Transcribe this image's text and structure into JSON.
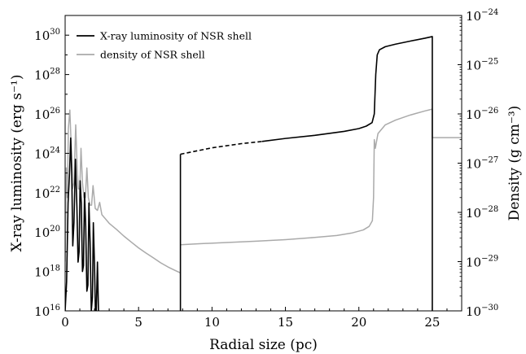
{
  "chart_data": {
    "type": "line",
    "title": "",
    "xlabel": "Radial size (pc)",
    "ylabel_left": "X-ray luminosity (erg s⁻¹)",
    "ylabel_right": "Density (g cm⁻³)",
    "xlim": [
      0,
      27
    ],
    "ylim_left": [
      1e+16,
      1e+31
    ],
    "ylim_right": [
      1e-30,
      1e-24
    ],
    "yscale_left": "log",
    "yscale_right": "log",
    "grid": false,
    "legend": "top-left",
    "x_ticks": [
      0,
      5,
      10,
      15,
      20,
      25
    ],
    "x_tick_labels": [
      "0",
      "5",
      "10",
      "15",
      "20",
      "25"
    ],
    "left_ticks": [
      {
        "base": "10",
        "exp": "16",
        "value": 1e+16
      },
      {
        "base": "10",
        "exp": "18",
        "value": 1e+18
      },
      {
        "base": "10",
        "exp": "20",
        "value": 1e+20
      },
      {
        "base": "10",
        "exp": "22",
        "value": 1e+22
      },
      {
        "base": "10",
        "exp": "24",
        "value": 1e+24
      },
      {
        "base": "10",
        "exp": "26",
        "value": 1e+26
      },
      {
        "base": "10",
        "exp": "28",
        "value": 1e+28
      },
      {
        "base": "10",
        "exp": "30",
        "value": 1e+30
      }
    ],
    "right_ticks": [
      {
        "base": "10",
        "exp": "−30",
        "value": 1e-30
      },
      {
        "base": "10",
        "exp": "−29",
        "value": 1e-29
      },
      {
        "base": "10",
        "exp": "−28",
        "value": 1e-28
      },
      {
        "base": "10",
        "exp": "−27",
        "value": 1e-27
      },
      {
        "base": "10",
        "exp": "−26",
        "value": 1e-26
      },
      {
        "base": "10",
        "exp": "−25",
        "value": 1e-25
      },
      {
        "base": "10",
        "exp": "−24",
        "value": 1e-24
      }
    ],
    "series": [
      {
        "name": "X-ray luminosity of NSR shell",
        "color": "#000000",
        "axis": "left",
        "segments": [
          {
            "style": "solid",
            "points": [
              [
                0.0,
                1e+16
              ],
              [
                0.1,
                3e+17
              ],
              [
                0.2,
                3e+21
              ],
              [
                0.3,
                1e+23
              ],
              [
                0.38,
                6e+24
              ],
              [
                0.45,
                1e+23
              ],
              [
                0.52,
                2e+19
              ],
              [
                0.6,
                3e+20
              ],
              [
                0.7,
                5e+23
              ],
              [
                0.8,
                2e+21
              ],
              [
                0.88,
                3e+18
              ],
              [
                0.95,
                1e+19
              ],
              [
                1.02,
                4e+22
              ],
              [
                1.1,
                3e+21
              ],
              [
                1.18,
                1e+18
              ],
              [
                1.25,
                2e+18
              ],
              [
                1.32,
                1e+22
              ],
              [
                1.4,
                2e+20
              ],
              [
                1.48,
                1e+17
              ],
              [
                1.55,
                2e+17
              ],
              [
                1.62,
                3e+21
              ],
              [
                1.7,
                3e+19
              ],
              [
                1.78,
                1e+16
              ],
              [
                1.86,
                5e+16
              ],
              [
                1.92,
                3e+20
              ],
              [
                2.0,
                2e+18
              ],
              [
                2.06,
                1e+16
              ],
              [
                2.12,
                1e+16
              ],
              [
                2.2,
                3e+18
              ],
              [
                2.27,
                1e+16
              ]
            ]
          },
          {
            "style": "solid",
            "points": [
              [
                7.85,
                1e+16
              ],
              [
                7.85,
                9e+23
              ]
            ]
          },
          {
            "style": "dashed",
            "points": [
              [
                7.85,
                9e+23
              ],
              [
                10.0,
                1.9e+24
              ],
              [
                12.0,
                3.1e+24
              ],
              [
                13.4,
                4e+24
              ]
            ]
          },
          {
            "style": "solid",
            "points": [
              [
                13.4,
                4e+24
              ],
              [
                15.0,
                5.7e+24
              ],
              [
                17.0,
                8.2e+24
              ],
              [
                19.0,
                1.3e+25
              ],
              [
                20.0,
                1.8e+25
              ],
              [
                20.5,
                2.4e+25
              ],
              [
                20.9,
                3.6e+25
              ],
              [
                21.05,
                1e+26
              ],
              [
                21.15,
                1e+28
              ],
              [
                21.25,
                1e+29
              ],
              [
                21.4,
                1.8e+29
              ],
              [
                21.8,
                2.6e+29
              ],
              [
                22.5,
                3.5e+29
              ],
              [
                23.5,
                5e+29
              ],
              [
                24.5,
                7e+29
              ],
              [
                25.0,
                8.5e+29
              ],
              [
                25.0,
                1e+16
              ]
            ]
          }
        ]
      },
      {
        "name": "density of NSR shell",
        "color": "#aaaaaa",
        "axis": "right",
        "segments": [
          {
            "style": "solid",
            "points": [
              [
                0.0,
                1e-29
              ],
              [
                0.08,
                8e-28
              ],
              [
                0.15,
                2e-28
              ],
              [
                0.22,
                5e-27
              ],
              [
                0.32,
                1.2e-26
              ],
              [
                0.42,
                2e-27
              ],
              [
                0.5,
                3e-28
              ],
              [
                0.6,
                4e-28
              ],
              [
                0.72,
                6e-27
              ],
              [
                0.82,
                8e-28
              ],
              [
                0.9,
                3e-28
              ],
              [
                1.0,
                3e-28
              ],
              [
                1.08,
                2e-27
              ],
              [
                1.18,
                4e-28
              ],
              [
                1.28,
                2e-28
              ],
              [
                1.38,
                2e-28
              ],
              [
                1.48,
                8e-28
              ],
              [
                1.58,
                2e-28
              ],
              [
                1.7,
                1.4e-28
              ],
              [
                1.8,
                1.4e-28
              ],
              [
                1.9,
                3.5e-28
              ],
              [
                2.05,
                1.2e-28
              ],
              [
                2.2,
                1.1e-28
              ],
              [
                2.35,
                1.6e-28
              ],
              [
                2.5,
                9e-29
              ],
              [
                3.0,
                6e-29
              ],
              [
                3.5,
                4.5e-29
              ],
              [
                4.0,
                3.3e-29
              ],
              [
                4.5,
                2.5e-29
              ],
              [
                5.0,
                1.9e-29
              ],
              [
                5.5,
                1.5e-29
              ],
              [
                6.0,
                1.2e-29
              ],
              [
                6.5,
                9.5e-30
              ],
              [
                7.0,
                7.8e-30
              ],
              [
                7.5,
                6.6e-30
              ],
              [
                7.85,
                5.9e-30
              ]
            ]
          },
          {
            "style": "solid",
            "points": [
              [
                7.85,
                2.2e-29
              ],
              [
                9.0,
                2.3e-29
              ],
              [
                11.0,
                2.45e-29
              ],
              [
                13.0,
                2.6e-29
              ],
              [
                15.0,
                2.8e-29
              ],
              [
                17.0,
                3.1e-29
              ],
              [
                18.5,
                3.4e-29
              ],
              [
                19.5,
                3.8e-29
              ],
              [
                20.3,
                4.4e-29
              ],
              [
                20.7,
                5.2e-29
              ],
              [
                20.92,
                6.8e-29
              ],
              [
                21.0,
                2e-28
              ],
              [
                21.05,
                3e-27
              ],
              [
                21.12,
                2e-27
              ],
              [
                21.3,
                4e-27
              ],
              [
                21.8,
                6e-27
              ],
              [
                22.5,
                7.5e-27
              ],
              [
                23.5,
                9.5e-27
              ],
              [
                24.5,
                1.15e-26
              ],
              [
                25.0,
                1.25e-26
              ],
              [
                25.0,
                3.3e-27
              ],
              [
                27.0,
                3.3e-27
              ]
            ]
          }
        ]
      }
    ]
  }
}
